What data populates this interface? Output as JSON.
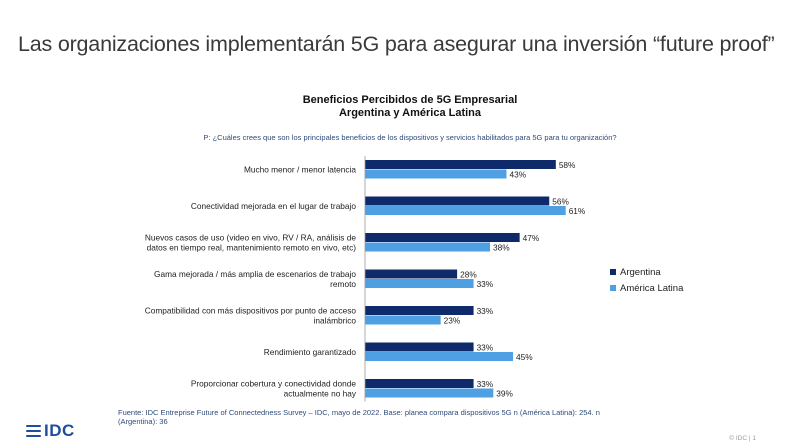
{
  "slide": {
    "title": "Las organizaciones implementarán 5G para asegurar una inversión “future proof”"
  },
  "chart_data": {
    "type": "bar",
    "orientation": "horizontal",
    "title_line1": "Beneficios Percibidos de 5G Empresarial",
    "title_line2": "Argentina y América Latina",
    "question": "P: ¿Cuáles crees que son los principales beneficios de los dispositivos y servicios habilitados para 5G para tu organización?",
    "categories": [
      [
        "Mucho menor / menor latencia"
      ],
      [
        "Conectividad mejorada en el lugar de trabajo"
      ],
      [
        "Nuevos casos de uso (video en vivo, RV / RA, análisis de",
        "datos en tiempo real, mantenimiento remoto en vivo, etc)"
      ],
      [
        "Gama mejorada / más amplia de escenarios de trabajo",
        "remoto"
      ],
      [
        "Compatibilidad con más dispositivos por punto de acceso",
        "inalámbrico"
      ],
      [
        "Rendimiento garantizado"
      ],
      [
        "Proporcionar cobertura y conectividad donde",
        "actualmente no hay"
      ]
    ],
    "series": [
      {
        "name": "Argentina",
        "color": "#0e2a6b",
        "values": [
          58,
          56,
          47,
          28,
          33,
          33,
          33
        ]
      },
      {
        "name": "América Latina",
        "color": "#4ea0e3",
        "values": [
          43,
          61,
          38,
          33,
          23,
          45,
          39
        ]
      }
    ],
    "value_suffix": "%",
    "legend_position": "right",
    "xlim": [
      0,
      100
    ]
  },
  "footer": {
    "source": "Fuente: IDC Entreprise Future of Connectedness Survey – IDC, mayo de 2022. Base: planea compara dispositivos 5G n (América Latina): 254. n (Argentina): 36",
    "logo": "IDC",
    "page": "© IDC | 1"
  }
}
